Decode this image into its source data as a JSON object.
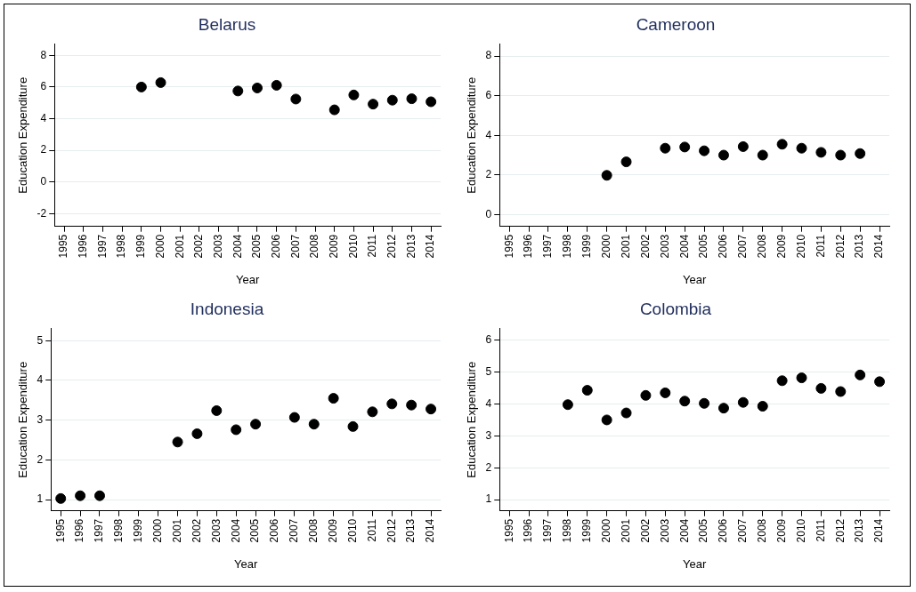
{
  "chart_data": [
    {
      "type": "scatter",
      "title": "Belarus",
      "xlabel": "Year",
      "ylabel": "Education Expenditure",
      "categories": [
        "1995",
        "1996",
        "1997",
        "1998",
        "1999",
        "2000",
        "2001",
        "2002",
        "2003",
        "2004",
        "2005",
        "2006",
        "2007",
        "2008",
        "2009",
        "2010",
        "2011",
        "2012",
        "2013",
        "2014"
      ],
      "color": "#000000",
      "marker": "circle",
      "grid": "y",
      "ylim": [
        -2.8,
        8.7
      ],
      "yticks": [
        -2,
        0,
        2,
        4,
        6,
        8
      ],
      "values": [
        null,
        null,
        null,
        null,
        6.0,
        6.28,
        null,
        null,
        null,
        5.75,
        5.94,
        6.11,
        5.24,
        null,
        4.56,
        5.5,
        4.92,
        5.17,
        5.26,
        5.07
      ]
    },
    {
      "type": "scatter",
      "title": "Cameroon",
      "xlabel": "Year",
      "ylabel": "Education Expenditure",
      "categories": [
        "1995",
        "1996",
        "1997",
        "1998",
        "1999",
        "2000",
        "2001",
        "2002",
        "2003",
        "2004",
        "2005",
        "2006",
        "2007",
        "2008",
        "2009",
        "2010",
        "2011",
        "2012",
        "2013",
        "2014"
      ],
      "color": "#000000",
      "marker": "circle",
      "grid": "y",
      "ylim": [
        -0.6,
        8.6
      ],
      "yticks": [
        0,
        2,
        4,
        6,
        8
      ],
      "values": [
        null,
        null,
        null,
        null,
        null,
        1.98,
        2.66,
        null,
        3.35,
        3.41,
        3.22,
        3.0,
        3.43,
        3.0,
        3.55,
        3.35,
        3.14,
        3.0,
        3.08,
        null
      ]
    },
    {
      "type": "scatter",
      "title": "Indonesia",
      "xlabel": "Year",
      "ylabel": "Education Expenditure",
      "categories": [
        "1995",
        "1996",
        "1997",
        "1998",
        "1999",
        "2000",
        "2001",
        "2002",
        "2003",
        "2004",
        "2005",
        "2006",
        "2007",
        "2008",
        "2009",
        "2010",
        "2011",
        "2012",
        "2013",
        "2014"
      ],
      "color": "#000000",
      "marker": "circle",
      "grid": "y",
      "ylim": [
        0.72,
        5.3
      ],
      "yticks": [
        1,
        2,
        3,
        4,
        5
      ],
      "values": [
        1.03,
        1.1,
        1.1,
        null,
        null,
        null,
        2.45,
        2.66,
        3.24,
        2.76,
        2.9,
        null,
        3.07,
        2.9,
        3.55,
        2.84,
        3.21,
        3.41,
        3.38,
        3.28
      ]
    },
    {
      "type": "scatter",
      "title": "Colombia",
      "xlabel": "Year",
      "ylabel": "Education Expenditure",
      "categories": [
        "1995",
        "1996",
        "1997",
        "1998",
        "1999",
        "2000",
        "2001",
        "2002",
        "2003",
        "2004",
        "2005",
        "2006",
        "2007",
        "2008",
        "2009",
        "2010",
        "2011",
        "2012",
        "2013",
        "2014"
      ],
      "color": "#000000",
      "marker": "circle",
      "grid": "y",
      "ylim": [
        0.65,
        6.36
      ],
      "yticks": [
        1,
        2,
        3,
        4,
        5,
        6
      ],
      "values": [
        null,
        null,
        null,
        3.98,
        4.43,
        3.5,
        3.72,
        4.27,
        4.35,
        4.09,
        4.02,
        3.87,
        4.05,
        3.93,
        4.73,
        4.82,
        4.49,
        4.39,
        4.91,
        4.7
      ]
    }
  ]
}
